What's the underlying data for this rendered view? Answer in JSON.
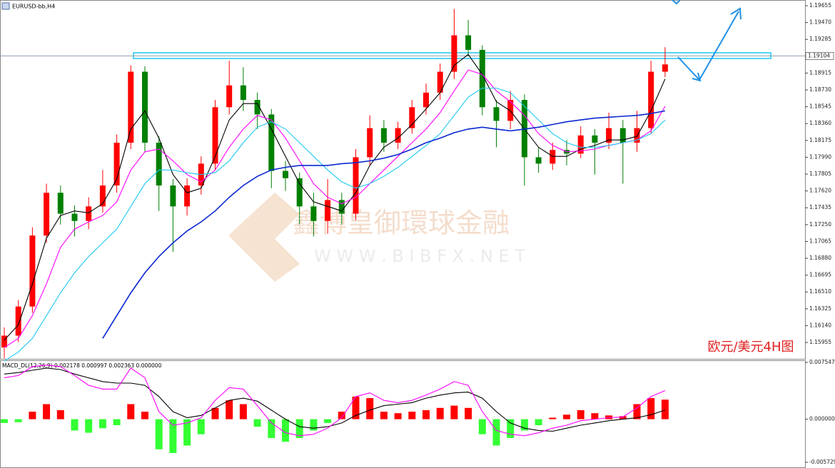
{
  "chart_data": [
    {
      "type": "candlestick",
      "title": "EURUSD-bb,H4",
      "annotation": "欧元/美元4H图",
      "watermark": [
        "鑫博皇御環球金融",
        "W W W . B I B F X . N E T"
      ],
      "ylim": [
        1.15775,
        1.19718
      ],
      "yticks": [
        1.19655,
        {
          "value": 1.1947,
          "label": "1.19470"
        },
        1.19285,
        1.18915,
        {
          "value": 1.1873,
          "label": "1.18730"
        },
        1.18545,
        {
          "value": 1.1836,
          "label": "1.18360"
        },
        1.18175,
        {
          "value": 1.1799,
          "label": "1.17990"
        },
        1.17805,
        {
          "value": 1.1762,
          "label": "1.17620"
        },
        1.17435,
        {
          "value": 1.1725,
          "label": "1.17250"
        },
        1.17065,
        {
          "value": 1.1688,
          "label": "1.16880"
        },
        1.16695,
        {
          "value": 1.1651,
          "label": "1.16510"
        },
        1.16325,
        {
          "value": 1.1614,
          "label": "1.16140"
        },
        1.15955
      ],
      "current_price": 1.19104,
      "zone": [
        1.19075,
        1.19138
      ],
      "up_color": "#ff0000",
      "down_color": "#008000",
      "open": [
        1.159,
        1.1603,
        1.1635,
        1.1713,
        1.176,
        1.1737,
        1.1729,
        1.1745,
        1.1768,
        1.1815,
        1.1893,
        1.1815,
        1.1768,
        1.1745,
        1.1768,
        1.1792,
        1.1854,
        1.1878,
        1.1862,
        1.1846,
        1.1784,
        1.1776,
        1.1745,
        1.1729,
        1.1752,
        1.1737,
        1.1799,
        1.1831,
        1.1815,
        1.1831,
        1.1854,
        1.187,
        1.1893,
        1.1933,
        1.1917,
        1.1854,
        1.1839,
        1.1862,
        1.1799,
        1.1792,
        1.1807,
        1.1803,
        1.1823,
        1.1815,
        1.1831,
        1.1815,
        1.1831,
        1.1893
      ],
      "high": [
        1.1612,
        1.1642,
        1.1722,
        1.177,
        1.1768,
        1.1746,
        1.1755,
        1.1785,
        1.1824,
        1.19,
        1.1899,
        1.1822,
        1.1775,
        1.1776,
        1.18,
        1.1862,
        1.1905,
        1.1898,
        1.187,
        1.1852,
        1.1795,
        1.1782,
        1.176,
        1.1775,
        1.176,
        1.1808,
        1.1845,
        1.184,
        1.1838,
        1.1862,
        1.188,
        1.1902,
        1.1962,
        1.195,
        1.1922,
        1.1862,
        1.1872,
        1.1868,
        1.181,
        1.1815,
        1.1818,
        1.1833,
        1.183,
        1.1848,
        1.184,
        1.185,
        1.1905,
        1.192
      ],
      "low": [
        1.1578,
        1.1596,
        1.1628,
        1.1705,
        1.1725,
        1.1712,
        1.172,
        1.1738,
        1.176,
        1.1808,
        1.1805,
        1.174,
        1.1695,
        1.1735,
        1.1758,
        1.1785,
        1.1846,
        1.185,
        1.183,
        1.1765,
        1.1762,
        1.1725,
        1.1712,
        1.1715,
        1.1725,
        1.173,
        1.179,
        1.1805,
        1.1808,
        1.1825,
        1.1846,
        1.1862,
        1.1885,
        1.191,
        1.1845,
        1.181,
        1.183,
        1.1768,
        1.1782,
        1.1785,
        1.179,
        1.1798,
        1.178,
        1.1808,
        1.177,
        1.1805,
        1.1825,
        1.1887
      ],
      "close": [
        1.1603,
        1.1635,
        1.1713,
        1.176,
        1.1737,
        1.1729,
        1.1745,
        1.1768,
        1.1815,
        1.1893,
        1.1815,
        1.1768,
        1.1745,
        1.1768,
        1.1792,
        1.1854,
        1.1878,
        1.1862,
        1.1846,
        1.1784,
        1.1776,
        1.1745,
        1.1729,
        1.1752,
        1.1737,
        1.1799,
        1.1831,
        1.1815,
        1.1831,
        1.1854,
        1.187,
        1.1893,
        1.1933,
        1.1917,
        1.1854,
        1.1839,
        1.1862,
        1.1799,
        1.1792,
        1.1807,
        1.1803,
        1.1823,
        1.1815,
        1.1831,
        1.1815,
        1.1831,
        1.1893,
        1.1901
      ],
      "series": [
        {
          "color": "#000000",
          "values": [
            1.1598,
            1.1615,
            1.166,
            1.171,
            1.1735,
            1.174,
            1.1738,
            1.1748,
            1.1775,
            1.183,
            1.185,
            1.182,
            1.178,
            1.176,
            1.1765,
            1.18,
            1.184,
            1.1858,
            1.1858,
            1.183,
            1.18,
            1.177,
            1.175,
            1.1745,
            1.174,
            1.176,
            1.179,
            1.181,
            1.182,
            1.1835,
            1.1852,
            1.187,
            1.19,
            1.1912,
            1.189,
            1.186,
            1.185,
            1.183,
            1.181,
            1.18,
            1.18,
            1.1808,
            1.1812,
            1.1818,
            1.1818,
            1.1822,
            1.185,
            1.1885
          ]
        },
        {
          "color": "#ff00ff",
          "values": [
            1.159,
            1.16,
            1.1625,
            1.166,
            1.17,
            1.172,
            1.1728,
            1.1735,
            1.175,
            1.1785,
            1.1805,
            1.1808,
            1.1795,
            1.178,
            1.1772,
            1.1785,
            1.181,
            1.183,
            1.1845,
            1.184,
            1.182,
            1.1795,
            1.177,
            1.1755,
            1.1748,
            1.1755,
            1.177,
            1.1785,
            1.18,
            1.1815,
            1.183,
            1.1848,
            1.1872,
            1.1895,
            1.189,
            1.1872,
            1.186,
            1.1845,
            1.1825,
            1.1812,
            1.1805,
            1.1806,
            1.1808,
            1.1812,
            1.1815,
            1.1818,
            1.1828,
            1.1855
          ]
        },
        {
          "color": "#1ec8f0",
          "values": [
            1.1575,
            1.1585,
            1.16,
            1.1625,
            1.165,
            1.1672,
            1.169,
            1.1705,
            1.172,
            1.1745,
            1.177,
            1.1785,
            1.1785,
            1.1782,
            1.178,
            1.1782,
            1.1795,
            1.1815,
            1.1832,
            1.1838,
            1.183,
            1.1815,
            1.18,
            1.1785,
            1.1772,
            1.1765,
            1.177,
            1.1778,
            1.1788,
            1.18,
            1.1812,
            1.1825,
            1.1845,
            1.1865,
            1.1875,
            1.1875,
            1.187,
            1.1855,
            1.184,
            1.1825,
            1.1815,
            1.181,
            1.181,
            1.1812,
            1.1815,
            1.1818,
            1.1825,
            1.184
          ]
        },
        {
          "color": "#0a28d2",
          "values": [
            null,
            null,
            null,
            null,
            null,
            null,
            null,
            1.16,
            1.1625,
            1.165,
            1.1672,
            1.169,
            1.1705,
            1.1718,
            1.1728,
            1.174,
            1.1755,
            1.1768,
            1.1778,
            1.1785,
            1.1788,
            1.179,
            1.179,
            1.179,
            1.1792,
            1.1793,
            1.1795,
            1.1798,
            1.1802,
            1.1808,
            1.1815,
            1.182,
            1.1826,
            1.183,
            1.1832,
            1.183,
            1.1828,
            1.183,
            1.1832,
            1.1835,
            1.1838,
            1.184,
            1.1842,
            1.1843,
            1.1844,
            1.1845,
            1.1847,
            1.185
          ]
        }
      ]
    },
    {
      "type": "macd",
      "title": "MACD_DL(12,26,9) 0.002178 0.000997 0.002363 0.000000",
      "ylim": [
        -0.005729,
        0.007547
      ],
      "yticks": [
        0.007547,
        {
          "value": 0,
          "label": "0.000000"
        },
        -0.005729
      ],
      "up_color": "#ff0000",
      "down_color": "#33ff33",
      "values": [
        -0.0005,
        -0.0004,
        0.001,
        0.002,
        0.0012,
        -0.0015,
        -0.0018,
        -0.0012,
        -0.0008,
        0.002,
        0.001,
        -0.004,
        -0.0045,
        -0.0035,
        -0.002,
        0.0015,
        0.0025,
        0.002,
        -0.001,
        -0.0025,
        -0.003,
        -0.0025,
        -0.0015,
        -0.0005,
        0.001,
        0.003,
        0.0028,
        0.001,
        0.0008,
        0.001,
        0.0012,
        0.0015,
        0.0018,
        0.0015,
        -0.002,
        -0.0035,
        -0.0025,
        -0.0015,
        -0.0008,
        0.0002,
        0.0006,
        0.0012,
        0.0008,
        0.0005,
        0.0004,
        0.002,
        0.0028,
        0.0026
      ],
      "series": [
        {
          "color": "#000000",
          "values": [
            0.006,
            0.0062,
            0.0065,
            0.0068,
            0.0066,
            0.006,
            0.0055,
            0.005,
            0.0048,
            0.0048,
            0.0045,
            0.003,
            0.001,
            0.0002,
            0.0005,
            0.0015,
            0.0025,
            0.0028,
            0.0024,
            0.0012,
            0.0,
            -0.001,
            -0.0012,
            -0.001,
            -0.0005,
            0.0005,
            0.0012,
            0.0018,
            0.002,
            0.0022,
            0.0028,
            0.0032,
            0.0035,
            0.0036,
            0.0028,
            0.001,
            -0.0005,
            -0.0012,
            -0.0015,
            -0.0016,
            -0.0012,
            -0.0008,
            -0.0005,
            -0.0002,
            0.0,
            0.0002,
            0.0006,
            0.0012
          ]
        },
        {
          "color": "#ff00ff",
          "values": [
            0.0055,
            0.0058,
            0.007,
            0.0072,
            0.007,
            0.0058,
            0.0045,
            0.004,
            0.004,
            0.0068,
            0.0055,
            0.001,
            -0.0008,
            -0.0005,
            0.0002,
            0.0025,
            0.0042,
            0.004,
            0.0018,
            -0.0005,
            -0.0018,
            -0.0022,
            -0.002,
            -0.0012,
            0.0002,
            0.003,
            0.0035,
            0.0025,
            0.0022,
            0.0025,
            0.0032,
            0.004,
            0.005,
            0.0045,
            0.001,
            -0.0015,
            -0.002,
            -0.0022,
            -0.0018,
            -0.0012,
            -0.0008,
            -0.0002,
            0.0,
            0.0002,
            0.0003,
            0.0015,
            0.003,
            0.0038
          ]
        }
      ]
    }
  ]
}
